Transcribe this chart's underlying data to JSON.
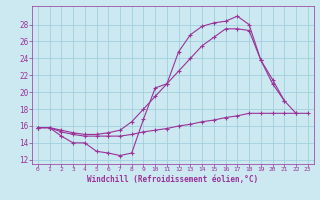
{
  "background_color": "#cce8f0",
  "grid_color": "#99ccdd",
  "line_color": "#993399",
  "xlabel": "Windchill (Refroidissement éolien,°C)",
  "xlim": [
    -0.5,
    23.5
  ],
  "ylim": [
    11.5,
    30.2
  ],
  "yticks": [
    12,
    14,
    16,
    18,
    20,
    22,
    24,
    26,
    28
  ],
  "xticks": [
    0,
    1,
    2,
    3,
    4,
    5,
    6,
    7,
    8,
    9,
    10,
    11,
    12,
    13,
    14,
    15,
    16,
    17,
    18,
    19,
    20,
    21,
    22,
    23
  ],
  "line1_x": [
    0,
    1,
    2,
    3,
    4,
    5,
    6,
    7,
    8,
    9,
    10,
    11,
    12,
    13,
    14,
    15,
    16,
    17,
    18,
    19,
    20,
    21,
    22
  ],
  "line1_y": [
    15.8,
    15.8,
    14.8,
    14.0,
    14.0,
    13.0,
    12.8,
    12.5,
    12.8,
    16.8,
    20.5,
    21.0,
    24.8,
    26.8,
    27.8,
    28.2,
    28.4,
    29.0,
    28.0,
    23.8,
    21.0,
    19.0,
    17.5
  ],
  "line2_x": [
    0,
    1,
    2,
    3,
    4,
    5,
    6,
    7,
    8,
    9,
    10,
    11,
    12,
    13,
    14,
    15,
    16,
    17,
    18,
    19,
    20,
    21
  ],
  "line2_y": [
    15.8,
    15.8,
    15.5,
    15.2,
    15.0,
    15.0,
    15.2,
    15.5,
    16.5,
    18.0,
    19.5,
    21.0,
    22.5,
    24.0,
    25.5,
    26.5,
    27.5,
    27.5,
    27.3,
    23.8,
    21.5,
    19.0
  ],
  "line3_x": [
    0,
    1,
    2,
    3,
    4,
    5,
    6,
    7,
    8,
    9,
    10,
    11,
    12,
    13,
    14,
    15,
    16,
    17,
    18,
    19,
    20,
    21,
    22,
    23
  ],
  "line3_y": [
    15.8,
    15.8,
    15.3,
    15.0,
    14.8,
    14.8,
    14.8,
    14.8,
    15.0,
    15.3,
    15.5,
    15.7,
    16.0,
    16.2,
    16.5,
    16.7,
    17.0,
    17.2,
    17.5,
    17.5,
    17.5,
    17.5,
    17.5,
    17.5
  ]
}
